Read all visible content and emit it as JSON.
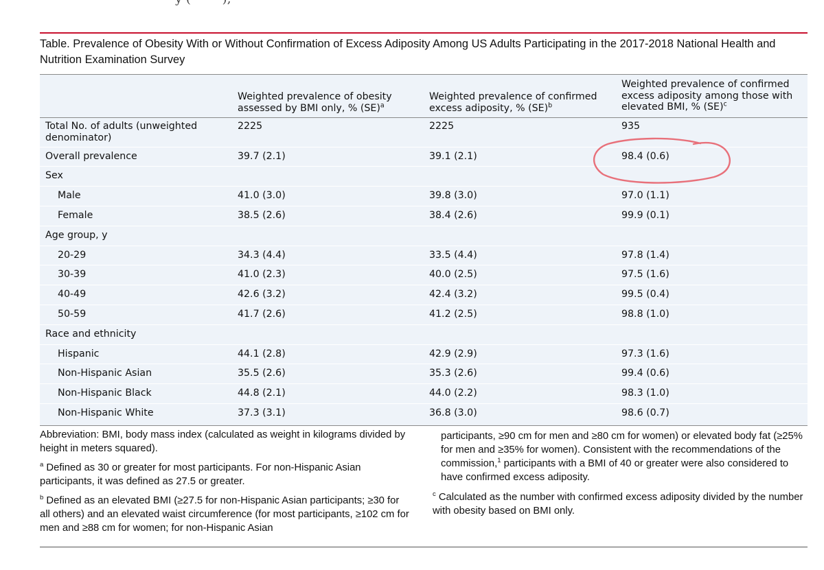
{
  "table": {
    "caption": "Table. Prevalence of Obesity With or Without Confirmation of Excess Adiposity Among US Adults Participating in the 2017-2018 National Health and Nutrition Examination Survey",
    "columns": [
      {
        "label": "Weighted prevalence of obesity assessed by BMI only, % (SE)",
        "footnote": "a"
      },
      {
        "label": "Weighted prevalence of confirmed excess adiposity, % (SE)",
        "footnote": "b"
      },
      {
        "label": "Weighted prevalence of confirmed excess adiposity among those with elevated BMI, % (SE)",
        "footnote": "c"
      }
    ],
    "rows": [
      {
        "label": "Total No. of adults (unweighted denominator)",
        "values": [
          "2225",
          "2225",
          "935"
        ]
      },
      {
        "label": "Overall prevalence",
        "values": [
          "39.7 (2.1)",
          "39.1 (2.1)",
          "98.4 (0.6)"
        ]
      },
      {
        "label": "Sex",
        "values": [
          "",
          "",
          ""
        ]
      },
      {
        "label": "Male",
        "values": [
          "41.0 (3.0)",
          "39.8 (3.0)",
          "97.0 (1.1)"
        ]
      },
      {
        "label": "Female",
        "values": [
          "38.5 (2.6)",
          "38.4 (2.6)",
          "99.9 (0.1)"
        ]
      },
      {
        "label": "Age group, y",
        "values": [
          "",
          "",
          ""
        ]
      },
      {
        "label": "20-29",
        "values": [
          "34.3 (4.4)",
          "33.5 (4.4)",
          "97.8 (1.4)"
        ]
      },
      {
        "label": "30-39",
        "values": [
          "41.0 (2.3)",
          "40.0 (2.5)",
          "97.5 (1.6)"
        ]
      },
      {
        "label": "40-49",
        "values": [
          "42.6 (3.2)",
          "42.4 (3.2)",
          "99.5 (0.4)"
        ]
      },
      {
        "label": "50-59",
        "values": [
          "41.7 (2.6)",
          "41.2 (2.5)",
          "98.8 (1.0)"
        ]
      },
      {
        "label": "Race and ethnicity",
        "values": [
          "",
          "",
          ""
        ]
      },
      {
        "label": "Hispanic",
        "values": [
          "44.1 (2.8)",
          "42.9 (2.9)",
          "97.3 (1.6)"
        ]
      },
      {
        "label": "Non-Hispanic Asian",
        "values": [
          "35.5 (2.6)",
          "35.3 (2.6)",
          "99.4 (0.6)"
        ]
      },
      {
        "label": "Non-Hispanic Black",
        "values": [
          "44.8 (2.1)",
          "44.0 (2.2)",
          "98.3 (1.0)"
        ]
      },
      {
        "label": "Non-Hispanic White",
        "values": [
          "37.3 (3.1)",
          "36.8 (3.0)",
          "98.6 (0.7)"
        ]
      }
    ]
  },
  "notes": {
    "abbreviation": "Abbreviation: BMI, body mass index (calculated as weight in kilograms divided by height in meters squared).",
    "a_marker": "a",
    "a_text": "Defined as 30 or greater for most participants. For non-Hispanic Asian participants, it was defined as 27.5 or greater.",
    "b_marker": "b",
    "b_text": "Defined as an elevated BMI (≥27.5 for non-Hispanic Asian participants; ≥30 for all others) and an elevated waist circumference (for most participants, ≥102 cm for men and ≥88 cm for women; for non-Hispanic Asian",
    "b_cont_1": "participants, ≥90 cm for men and ≥80 cm for women) or elevated body fat (≥25% for men and ≥35% for women). Consistent with the recommendations of the commission,",
    "b_cont_ref": "1",
    "b_cont_2": " participants with a BMI of 40 or greater were also considered to have confirmed excess adiposity.",
    "c_marker": "c",
    "c_text": "Calculated as the number with confirmed excess adiposity divided by the number with obesity based on BMI only."
  },
  "annotation": {
    "color": "#e8707a"
  },
  "colors": {
    "accent_rule": "#c8102e",
    "table_background": "#eef3f9"
  }
}
